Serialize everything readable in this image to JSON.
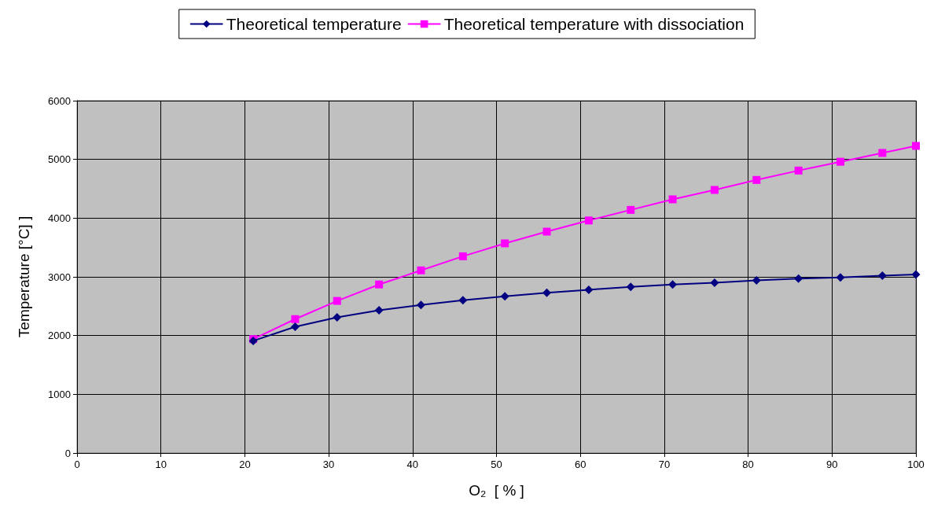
{
  "chart_data": {
    "type": "line",
    "xlabel": "O₂  [ % ]",
    "ylabel": "Temperature [°C] ]",
    "x": [
      21,
      26,
      31,
      36,
      41,
      46,
      51,
      56,
      61,
      66,
      71,
      76,
      81,
      86,
      91,
      96,
      100
    ],
    "series": [
      {
        "name": "Theoretical temperature",
        "color": "#000080",
        "marker": "diamond",
        "values": [
          1910,
          2150,
          2310,
          2430,
          2520,
          2600,
          2670,
          2730,
          2780,
          2830,
          2870,
          2900,
          2940,
          2970,
          2990,
          3020,
          3040
        ]
      },
      {
        "name": "Theoretical temperature with dissociation",
        "color": "#ff00ff",
        "marker": "square",
        "values": [
          1940,
          2280,
          2590,
          2870,
          3110,
          3350,
          3570,
          3770,
          3960,
          4140,
          4320,
          4480,
          4650,
          4810,
          4960,
          5110,
          5230
        ]
      }
    ],
    "xlim": [
      0,
      100
    ],
    "xticks": [
      0,
      10,
      20,
      30,
      40,
      50,
      60,
      70,
      80,
      90,
      100
    ],
    "ylim": [
      0,
      6000
    ],
    "yticks": [
      0,
      1000,
      2000,
      3000,
      4000,
      5000,
      6000
    ],
    "grid": true,
    "legend": "top",
    "line_style": "solid"
  }
}
